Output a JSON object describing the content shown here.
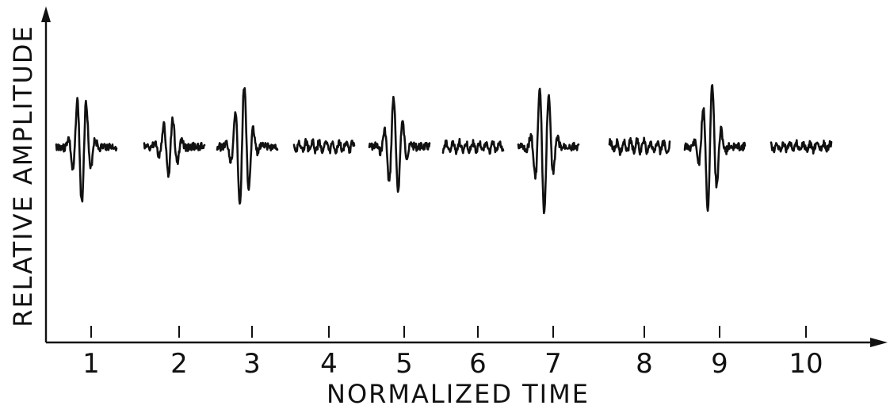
{
  "chart_data": {
    "type": "line",
    "xlabel": "NORMALIZED TIME",
    "ylabel": "RELATIVE AMPLITUDE",
    "x_ticks": [
      "1",
      "2",
      "3",
      "4",
      "5",
      "6",
      "7",
      "8",
      "9",
      "10"
    ],
    "grid": false,
    "legend": "none",
    "series": [
      {
        "category": "1",
        "peak_amplitude": 0.85,
        "kind": "burst"
      },
      {
        "category": "2",
        "peak_amplitude": 0.45,
        "kind": "burst"
      },
      {
        "category": "3",
        "peak_amplitude": 0.95,
        "kind": "burst"
      },
      {
        "category": "4",
        "peak_amplitude": 0.18,
        "kind": "noise"
      },
      {
        "category": "5",
        "peak_amplitude": 0.75,
        "kind": "burst"
      },
      {
        "category": "6",
        "peak_amplitude": 0.17,
        "kind": "noise"
      },
      {
        "category": "7",
        "peak_amplitude": 1.0,
        "kind": "burst"
      },
      {
        "category": "8",
        "peak_amplitude": 0.22,
        "kind": "noise"
      },
      {
        "category": "9",
        "peak_amplitude": 0.98,
        "kind": "burst"
      },
      {
        "category": "10",
        "peak_amplitude": 0.14,
        "kind": "noise"
      }
    ],
    "colors": {
      "ink": "#111111",
      "background": "#ffffff"
    }
  }
}
